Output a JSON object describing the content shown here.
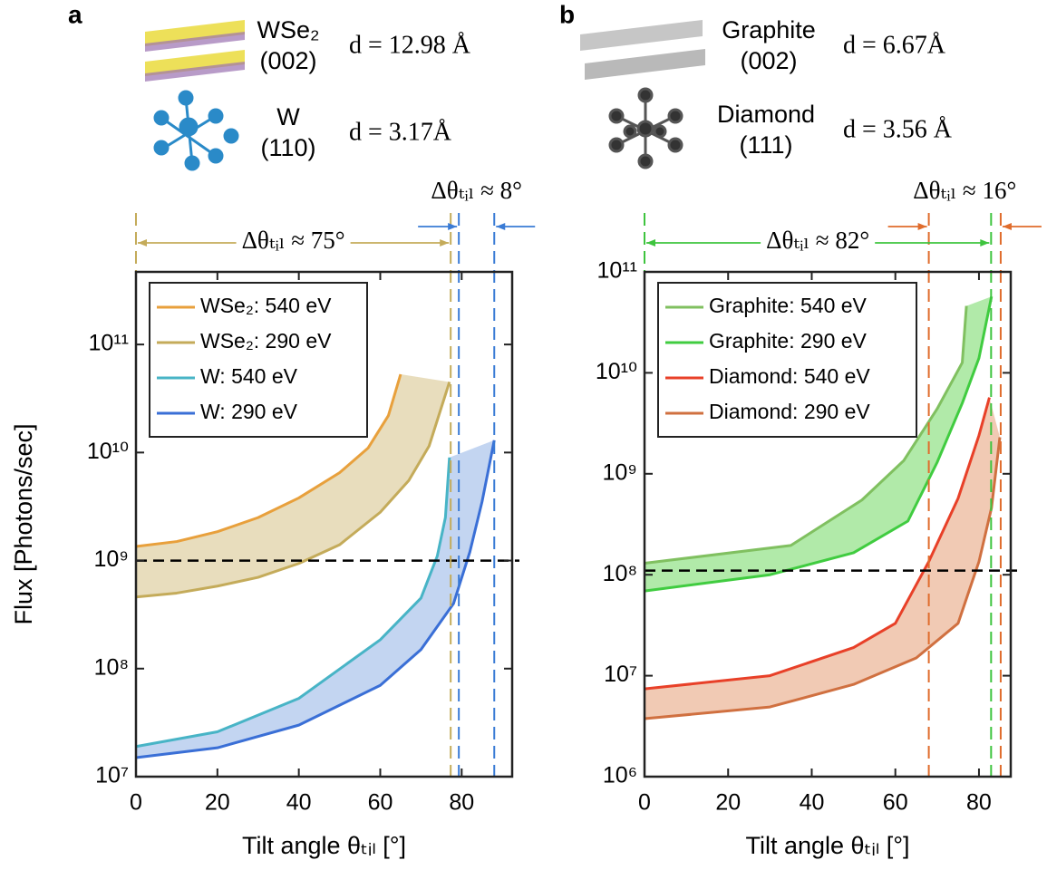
{
  "chart_data": [
    {
      "type": "line",
      "panel_label": "a",
      "header": [
        {
          "name": "WSe₂",
          "plane": "(002)",
          "d": "d = 12.98 Å"
        },
        {
          "name": "W",
          "plane": "(110)",
          "d": "d = 3.17Å"
        }
      ],
      "y_label": "Flux [Photons/sec]",
      "x_label": "Tilt angle θₜᵢₗ [°]",
      "log_y": true,
      "legend": "upper left",
      "xlim": [
        0,
        92.4
      ],
      "xticks": [
        0,
        20,
        40,
        60,
        80
      ],
      "ylim": [
        10000000,
        470000000000
      ],
      "yticks": [
        {
          "value": 10000000,
          "label": "10⁷"
        },
        {
          "value": 100000000,
          "label": "10⁸"
        },
        {
          "value": 1000000000,
          "label": "10⁹"
        },
        {
          "value": 10000000000,
          "label": "10¹⁰"
        },
        {
          "value": 100000000000,
          "label": "10¹¹"
        }
      ],
      "series": [
        {
          "name": "WSe₂: 540 eV",
          "color": "#e8a03c",
          "band_fill": "#e6d9b6",
          "x": [
            0,
            10,
            20,
            30,
            40,
            50,
            57,
            62,
            65
          ],
          "values": [
            1350000000,
            1500000000,
            1850000000,
            2500000000,
            3800000000,
            6500000000,
            11000000000,
            22000000000,
            53000000000
          ]
        },
        {
          "name": "WSe₂: 290 eV",
          "color": "#c4ab5a",
          "x": [
            0,
            10,
            20,
            30,
            40,
            50,
            60,
            67,
            72,
            77
          ],
          "values": [
            460000000,
            500000000,
            580000000,
            700000000,
            940000000,
            1400000000,
            2800000000,
            5500000000,
            11500000000,
            45000000000
          ]
        },
        {
          "name": "W: 540 eV",
          "color": "#48b4c6",
          "band_fill": "#bcd0f0",
          "x": [
            0,
            20,
            40,
            60,
            70,
            74,
            76,
            77
          ],
          "values": [
            19000000,
            26000000,
            53000000,
            185000000,
            450000000,
            1100000000,
            2500000000,
            9000000000
          ]
        },
        {
          "name": "W: 290 eV",
          "color": "#3a6fd6",
          "x": [
            0,
            20,
            40,
            60,
            70,
            78,
            82,
            85,
            88
          ],
          "values": [
            15000000,
            18500000,
            30000000,
            70000000,
            150000000,
            400000000,
            1200000000,
            3500000000,
            13000000000
          ]
        }
      ],
      "hline": 1000000000,
      "vlines": [
        {
          "x": 0,
          "color": "#c4ab5a"
        },
        {
          "x": 77.3,
          "color": "#c4ab5a"
        },
        {
          "x": 79.3,
          "color": "#3a7bd5"
        },
        {
          "x": 88,
          "color": "#3a7bd5"
        }
      ],
      "annotations": [
        {
          "text": "Δθₜᵢₗ ≈ 75°",
          "x": [
            0,
            77.3
          ],
          "color": "#c4ab5a",
          "style": "inside"
        },
        {
          "text": "Δθₜᵢₗ ≈ 8°",
          "x": [
            79.3,
            88
          ],
          "color": "#3a7bd5",
          "style": "outside"
        }
      ]
    },
    {
      "type": "line",
      "panel_label": "b",
      "header": [
        {
          "name": "Graphite",
          "plane": "(002)",
          "d": "d = 6.67Å"
        },
        {
          "name": "Diamond",
          "plane": "(111)",
          "d": "d = 3.56 Å"
        }
      ],
      "x_label": "Tilt angle θₜᵢₗ [°]",
      "log_y": true,
      "legend": "upper left",
      "xlim": [
        0,
        87.6
      ],
      "xticks": [
        0,
        20,
        40,
        60,
        80
      ],
      "ylim": [
        1000000,
        100000000000
      ],
      "yticks": [
        {
          "value": 1000000,
          "label": "10⁶"
        },
        {
          "value": 10000000,
          "label": "10⁷"
        },
        {
          "value": 100000000,
          "label": "10⁸"
        },
        {
          "value": 1000000000,
          "label": "10⁹"
        },
        {
          "value": 10000000000,
          "label": "10¹⁰"
        },
        {
          "value": 100000000000,
          "label": "10¹¹"
        }
      ],
      "series": [
        {
          "name": "Graphite: 540 eV",
          "color": "#80c060",
          "band_fill": "#a8e8a0",
          "x": [
            0,
            35,
            52,
            62,
            70,
            76,
            77
          ],
          "values": [
            130000000,
            195000000,
            550000000,
            1350000000,
            4400000000,
            12600000000,
            46000000000
          ]
        },
        {
          "name": "Graphite: 290 eV",
          "color": "#40cc40",
          "x": [
            0,
            30,
            50,
            63,
            70,
            76,
            80,
            83
          ],
          "values": [
            69000000,
            100000000,
            165000000,
            340000000,
            1300000000,
            5000000000,
            14000000000,
            57000000000
          ]
        },
        {
          "name": "Diamond: 540 eV",
          "color": "#e84028",
          "band_fill": "#f0c4ac",
          "x": [
            0,
            30,
            50,
            60,
            68,
            75,
            80,
            82.5
          ],
          "values": [
            7400000,
            10000000,
            19000000,
            33000000,
            135000000,
            570000000,
            2400000000,
            5700000000
          ]
        },
        {
          "name": "Diamond: 290 eV",
          "color": "#d07040",
          "x": [
            0,
            30,
            50,
            65,
            75,
            80,
            83,
            85
          ],
          "values": [
            3750000,
            4900000,
            8200000,
            15000000,
            33000000,
            135000000,
            460000000,
            2300000000
          ]
        }
      ],
      "hline": 110000000,
      "vlines": [
        {
          "x": 0,
          "color": "#3ec43e"
        },
        {
          "x": 68,
          "color": "#e06c2c"
        },
        {
          "x": 82.9,
          "color": "#3ec43e"
        },
        {
          "x": 85.2,
          "color": "#e06c2c"
        }
      ],
      "annotations": [
        {
          "text": "Δθₜᵢₗ ≈ 82°",
          "x": [
            0,
            82.9
          ],
          "color": "#3ec43e",
          "style": "inside"
        },
        {
          "text": "Δθₜᵢₗ ≈ 16°",
          "x": [
            68,
            85.2
          ],
          "color": "#e06c2c",
          "style": "outside"
        }
      ]
    }
  ]
}
